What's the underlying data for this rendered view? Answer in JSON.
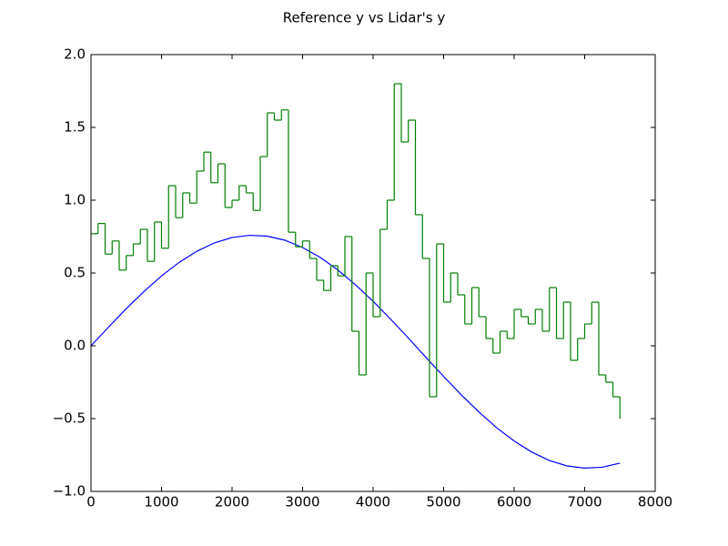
{
  "chart_data": {
    "type": "line",
    "title": "Reference y vs Lidar's y",
    "drawstyle": [
      "default",
      "steps-post"
    ],
    "series": [
      {
        "color": "#0000ff",
        "x": [
          0,
          250,
          500,
          750,
          1000,
          1250,
          1500,
          1750,
          2000,
          2250,
          2500,
          2750,
          3000,
          3250,
          3500,
          3750,
          4000,
          4250,
          4500,
          4750,
          5000,
          5250,
          5500,
          5750,
          6000,
          6250,
          6500,
          6750,
          7000,
          7250,
          7500
        ],
        "values": [
          0,
          0.129,
          0.255,
          0.372,
          0.48,
          0.573,
          0.649,
          0.707,
          0.744,
          0.759,
          0.753,
          0.725,
          0.675,
          0.607,
          0.521,
          0.419,
          0.306,
          0.182,
          0.053,
          -0.08,
          -0.21,
          -0.337,
          -0.454,
          -0.562,
          -0.654,
          -0.73,
          -0.788,
          -0.825,
          -0.84,
          -0.834,
          -0.806
        ]
      },
      {
        "color": "#008000",
        "x": [
          0,
          100,
          200,
          300,
          400,
          500,
          600,
          700,
          800,
          900,
          1000,
          1100,
          1200,
          1300,
          1400,
          1500,
          1600,
          1700,
          1800,
          1900,
          2000,
          2100,
          2200,
          2300,
          2400,
          2500,
          2600,
          2700,
          2800,
          2900,
          3000,
          3100,
          3200,
          3300,
          3400,
          3500,
          3600,
          3700,
          3800,
          3900,
          4000,
          4100,
          4200,
          4300,
          4400,
          4500,
          4600,
          4700,
          4800,
          4900,
          5000,
          5100,
          5200,
          5300,
          5400,
          5500,
          5600,
          5700,
          5800,
          5900,
          6000,
          6100,
          6200,
          6300,
          6400,
          6500,
          6600,
          6700,
          6800,
          6900,
          7000,
          7100,
          7200,
          7300,
          7400,
          7500
        ],
        "values": [
          0.77,
          0.84,
          0.63,
          0.72,
          0.52,
          0.62,
          0.7,
          0.8,
          0.58,
          0.85,
          0.67,
          1.1,
          0.88,
          1.05,
          0.98,
          1.2,
          1.33,
          1.12,
          1.25,
          0.95,
          1.0,
          1.1,
          1.05,
          0.93,
          1.3,
          1.6,
          1.55,
          1.62,
          0.78,
          0.68,
          0.72,
          0.6,
          0.45,
          0.38,
          0.55,
          0.48,
          0.75,
          0.1,
          -0.2,
          0.5,
          0.2,
          0.8,
          1.0,
          1.8,
          1.4,
          1.55,
          0.9,
          0.6,
          -0.35,
          0.7,
          0.3,
          0.5,
          0.35,
          0.15,
          0.4,
          0.2,
          0.05,
          -0.05,
          0.1,
          0.05,
          0.25,
          0.2,
          0.15,
          0.25,
          0.1,
          0.4,
          0.05,
          0.3,
          -0.1,
          0.05,
          0.15,
          0.3,
          -0.2,
          -0.25,
          -0.35,
          -0.5
        ]
      }
    ],
    "xlim": [
      0,
      8000
    ],
    "xticks": [
      0,
      1000,
      2000,
      3000,
      4000,
      5000,
      6000,
      7000,
      8000
    ],
    "ylim": [
      -1,
      2
    ],
    "yticks": [
      {
        "value": -1,
        "label": "−1.0"
      },
      {
        "value": -0.5,
        "label": "−0.5"
      },
      {
        "value": 0,
        "label": "0.0"
      },
      {
        "value": 0.5,
        "label": "0.5"
      },
      {
        "value": 1,
        "label": "1.0"
      },
      {
        "value": 1.5,
        "label": "1.5"
      },
      {
        "value": 2,
        "label": "2.0"
      }
    ]
  }
}
